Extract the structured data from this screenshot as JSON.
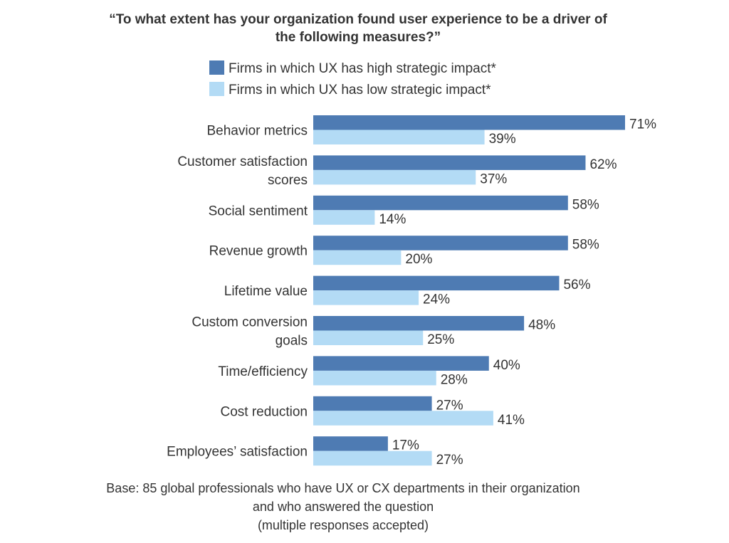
{
  "chart_data": {
    "type": "bar",
    "orientation": "horizontal",
    "title_lines": [
      "“To what extent has your organization found user experience to be a driver of",
      "the following measures?”"
    ],
    "categories": [
      [
        "Behavior metrics"
      ],
      [
        "Customer satisfaction",
        "scores"
      ],
      [
        "Social sentiment"
      ],
      [
        "Revenue growth"
      ],
      [
        "Lifetime value"
      ],
      [
        "Custom conversion",
        "goals"
      ],
      [
        "Time/efficiency"
      ],
      [
        "Cost reduction"
      ],
      [
        "Employees’ satisfaction"
      ]
    ],
    "series": [
      {
        "name": "Firms in which UX has high strategic impact*",
        "color": "#4E7BB3",
        "values": [
          71,
          62,
          58,
          58,
          56,
          48,
          40,
          27,
          17
        ]
      },
      {
        "name": "Firms in which UX has low strategic impact*",
        "color": "#B3DBF5",
        "values": [
          39,
          37,
          14,
          20,
          24,
          25,
          28,
          41,
          27
        ]
      }
    ],
    "value_suffix": "%",
    "legend_position": "top",
    "grid": false,
    "axes_visible": false,
    "footnote_lines": [
      "Base: 85 global professionals who have UX or CX departments in their organization",
      "and who answered the question",
      "(multiple responses accepted)"
    ]
  }
}
